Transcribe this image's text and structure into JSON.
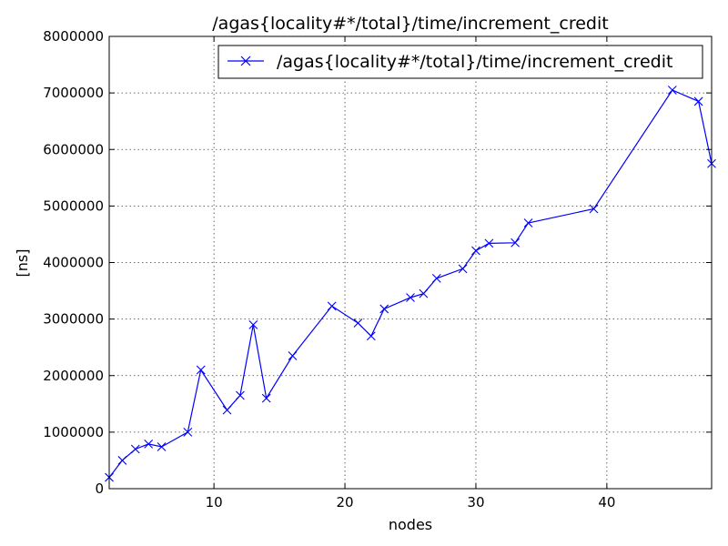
{
  "chart_data": {
    "type": "line",
    "title": "/agas{locality#*/total}/time/increment_credit",
    "xlabel": "nodes",
    "ylabel": "[ns]",
    "xlim": [
      2,
      48
    ],
    "ylim": [
      0,
      8000000
    ],
    "x_ticks": [
      10,
      20,
      30,
      40
    ],
    "y_ticks": [
      0,
      1000000,
      2000000,
      3000000,
      4000000,
      5000000,
      6000000,
      7000000,
      8000000
    ],
    "grid": true,
    "legend_position": "top-right",
    "series": [
      {
        "name": "/agas{locality#*/total}/time/increment_credit",
        "color": "#0000ff",
        "marker": "x",
        "x": [
          2,
          3,
          4,
          5,
          6,
          8,
          9,
          11,
          12,
          13,
          14,
          16,
          19,
          21,
          22,
          23,
          25,
          26,
          27,
          29,
          30,
          31,
          33,
          34,
          39,
          45,
          47,
          48
        ],
        "y": [
          200000,
          500000,
          700000,
          790000,
          740000,
          1000000,
          2100000,
          1390000,
          1650000,
          2900000,
          1600000,
          2350000,
          3230000,
          2930000,
          2700000,
          3180000,
          3380000,
          3450000,
          3720000,
          3890000,
          4210000,
          4340000,
          4350000,
          4700000,
          4950000,
          7050000,
          6850000,
          5750000
        ]
      }
    ]
  }
}
